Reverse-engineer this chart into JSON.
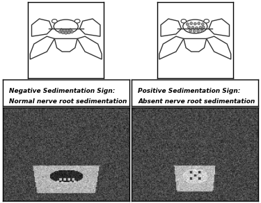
{
  "fig_width": 3.75,
  "fig_height": 2.91,
  "dpi": 100,
  "background_color": "#ffffff",
  "border_color": "#000000",
  "left_label_line1": "Negative Sedimentation Sign:",
  "left_label_line2": "Normal nerve root sedimentation",
  "right_label_line1": "Positive Sedimentation Sign:",
  "right_label_line2": "Absent nerve root sedimentation",
  "label_fontsize": 6.5,
  "nerve_dot_color": "#999999",
  "nerve_dot_ec": "#555555",
  "vertebra_edge": "#333333"
}
